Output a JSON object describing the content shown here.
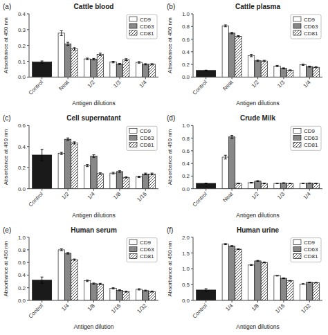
{
  "chart_data": [
    {
      "type": "bar",
      "title": "Cattle blood",
      "xlabel": "Antigen dilutions",
      "ylabel": "Absorbance at 450 nm",
      "annotations": [
        "(a)"
      ],
      "categories": [
        "Control",
        "Neat",
        "1/2",
        "1/3",
        "1/4"
      ],
      "series": [
        {
          "name": "CD9",
          "colors": [
            "#1a1a1a",
            "white",
            "white",
            "white",
            "white"
          ],
          "values": [
            0.095,
            0.278,
            0.115,
            0.095,
            0.093
          ],
          "errors": [
            0.007,
            0.015,
            0.005,
            0.005,
            0.005
          ]
        },
        {
          "name": "CD63",
          "color": "#888888",
          "values": [
            null,
            0.21,
            0.113,
            0.083,
            0.081
          ],
          "errors": [
            null,
            0.01,
            0.005,
            0.004,
            0.004
          ]
        },
        {
          "name": "CD81",
          "color": "white",
          "values": [
            null,
            0.178,
            0.143,
            0.11,
            0.081
          ],
          "errors": [
            null,
            0.008,
            0.008,
            0.006,
            0.004
          ]
        }
      ],
      "ylim": [
        0.0,
        0.4
      ],
      "yticks": [
        {
          "value": 0.0,
          "label": "0.0"
        },
        0.1,
        0.2,
        0.3,
        0.4
      ],
      "grid": false,
      "legend": "upper right"
    },
    {
      "type": "bar",
      "title": "Cattle plasma",
      "xlabel": "Antigen dilutions",
      "ylabel": "Absorbance at 450 nm",
      "annotations": [
        "(b)"
      ],
      "categories": [
        "Control",
        "Neat",
        "1/2",
        "1/3",
        "1/4"
      ],
      "series": [
        {
          "name": "CD9",
          "colors": [
            "#1a1a1a",
            "white",
            "white",
            "white",
            "white"
          ],
          "values": [
            0.105,
            0.81,
            0.34,
            0.175,
            0.195
          ],
          "errors": [
            0.005,
            0.015,
            0.018,
            0.01,
            0.01
          ]
        },
        {
          "name": "CD63",
          "color": "#888888",
          "values": [
            null,
            0.695,
            0.258,
            0.138,
            0.165
          ],
          "errors": [
            null,
            0.012,
            0.01,
            0.008,
            0.008
          ]
        },
        {
          "name": "CD81",
          "color": "white",
          "values": [
            null,
            0.645,
            0.255,
            0.108,
            0.155
          ],
          "errors": [
            null,
            0.01,
            0.01,
            0.006,
            0.008
          ]
        }
      ],
      "ylim": [
        0.0,
        1.0
      ],
      "yticks": [
        {
          "value": 0.0,
          "label": "0.0"
        },
        0.2,
        0.4,
        0.6,
        0.8,
        {
          "value": 1.0,
          "label": "1.0"
        }
      ],
      "grid": false,
      "legend": "upper right"
    },
    {
      "type": "bar",
      "title": "Cell supernatant",
      "xlabel": "Antigen dilutions",
      "ylabel": "Absorbance at 450 nm",
      "annotations": [
        "(c)"
      ],
      "categories": [
        "Control",
        "1/2",
        "1/4",
        "1/8",
        "1/16"
      ],
      "series": [
        {
          "name": "CD9",
          "colors": [
            "#1a1a1a",
            "white",
            "white",
            "white",
            "white"
          ],
          "values": [
            0.32,
            0.335,
            0.22,
            0.148,
            0.113
          ],
          "errors": [
            0.055,
            0.01,
            0.01,
            0.008,
            0.006
          ]
        },
        {
          "name": "CD63",
          "color": "#888888",
          "values": [
            null,
            0.47,
            0.31,
            0.163,
            0.14
          ],
          "errors": [
            null,
            0.012,
            0.012,
            0.008,
            0.008
          ]
        },
        {
          "name": "CD81",
          "color": "white",
          "values": [
            null,
            0.435,
            0.143,
            0.108,
            0.14
          ],
          "errors": [
            null,
            0.01,
            0.008,
            0.006,
            0.008
          ]
        }
      ],
      "ylim": [
        0.0,
        0.6
      ],
      "yticks": [
        {
          "value": 0.0,
          "label": "0.0"
        },
        0.2,
        0.4,
        0.6
      ],
      "grid": false,
      "legend": "upper right"
    },
    {
      "type": "bar",
      "title": "Crude Milk",
      "xlabel": "Antigen dilutions",
      "ylabel": "Absorbance at 450 nm",
      "annotations": [
        "(d)"
      ],
      "categories": [
        "Control",
        "Neat",
        "1/2",
        "1/3",
        "1/4"
      ],
      "series": [
        {
          "name": "CD9",
          "colors": [
            "#1a1a1a",
            "white",
            "white",
            "white",
            "white"
          ],
          "values": [
            0.085,
            0.5,
            0.095,
            0.085,
            0.085
          ],
          "errors": [
            0.005,
            0.03,
            0.005,
            0.004,
            0.004
          ]
        },
        {
          "name": "CD63",
          "color": "#888888",
          "values": [
            null,
            0.82,
            0.12,
            0.09,
            0.088
          ],
          "errors": [
            null,
            0.025,
            0.008,
            0.005,
            0.004
          ]
        },
        {
          "name": "CD81",
          "color": "white",
          "values": [
            null,
            0.085,
            0.085,
            0.083,
            0.085
          ],
          "errors": [
            null,
            0.005,
            0.005,
            0.004,
            0.004
          ]
        }
      ],
      "ylim": [
        0.0,
        1.0
      ],
      "yticks": [
        {
          "value": 0.0,
          "label": "0.0"
        },
        0.2,
        0.4,
        0.6,
        0.8,
        {
          "value": 1.0,
          "label": "1.0"
        }
      ],
      "grid": false,
      "legend": "upper right"
    },
    {
      "type": "bar",
      "title": "Human serum",
      "xlabel": "Antigen dilution",
      "ylabel": "Absorbance at 450 nm",
      "annotations": [
        "(e)"
      ],
      "categories": [
        "Control",
        "1/4",
        "1/8",
        "1/16",
        "1/32"
      ],
      "series": [
        {
          "name": "CD9",
          "colors": [
            "#1a1a1a",
            "white",
            "white",
            "white",
            "white"
          ],
          "values": [
            0.32,
            0.8,
            0.31,
            0.19,
            0.175
          ],
          "errors": [
            0.05,
            0.015,
            0.012,
            0.01,
            0.01
          ]
        },
        {
          "name": "CD63",
          "color": "#888888",
          "values": [
            null,
            0.745,
            0.265,
            0.16,
            0.155
          ],
          "errors": [
            null,
            0.012,
            0.01,
            0.008,
            0.008
          ]
        },
        {
          "name": "CD81",
          "color": "white",
          "values": [
            null,
            0.645,
            0.26,
            0.138,
            0.14
          ],
          "errors": [
            null,
            0.01,
            0.01,
            0.008,
            0.008
          ]
        }
      ],
      "ylim": [
        0.0,
        1.0
      ],
      "yticks": [
        {
          "value": 0.0,
          "label": "0.0"
        },
        0.2,
        0.4,
        0.6,
        0.8,
        {
          "value": 1.0,
          "label": "1.0"
        }
      ],
      "grid": false,
      "legend": "upper right"
    },
    {
      "type": "bar",
      "title": "Human urine",
      "xlabel": "Antigen dilutions",
      "ylabel": "Absorbance at 450 nm",
      "annotations": [
        "(f)"
      ],
      "categories": [
        "Control",
        "1/4",
        "1/8",
        "1/16",
        "1/32"
      ],
      "series": [
        {
          "name": "CD9",
          "colors": [
            "#1a1a1a",
            "white",
            "white",
            "white",
            "white"
          ],
          "values": [
            0.33,
            1.78,
            1.12,
            0.78,
            0.52
          ],
          "errors": [
            0.04,
            0.018,
            0.015,
            0.01,
            0.01
          ]
        },
        {
          "name": "CD63",
          "color": "#888888",
          "values": [
            null,
            1.72,
            1.25,
            0.7,
            0.57
          ],
          "errors": [
            null,
            0.015,
            0.015,
            0.01,
            0.01
          ]
        },
        {
          "name": "CD81",
          "color": "white",
          "values": [
            null,
            1.62,
            1.2,
            0.62,
            0.56
          ],
          "errors": [
            null,
            0.012,
            0.012,
            0.01,
            0.008
          ]
        }
      ],
      "ylim": [
        0.0,
        2.0
      ],
      "yticks": [
        {
          "value": 0.0,
          "label": "0.0"
        },
        0.5,
        {
          "value": 1.0,
          "label": "1.0"
        },
        1.5,
        {
          "value": 2.0,
          "label": "2.0"
        }
      ],
      "grid": false,
      "legend": "upper right"
    }
  ]
}
